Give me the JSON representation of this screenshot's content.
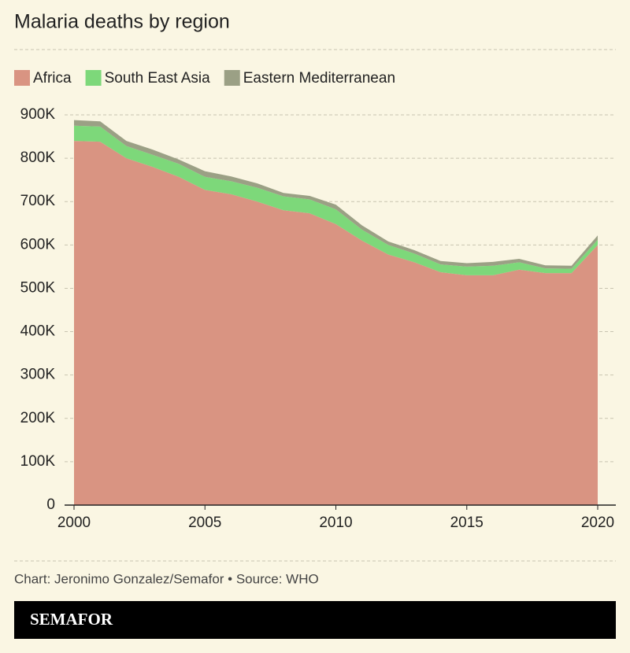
{
  "chart_data": {
    "type": "stacked_area",
    "title": "Malaria deaths by region",
    "x": [
      2000,
      2001,
      2002,
      2003,
      2004,
      2005,
      2006,
      2007,
      2008,
      2009,
      2010,
      2011,
      2012,
      2013,
      2014,
      2015,
      2016,
      2017,
      2018,
      2019,
      2020
    ],
    "series": [
      {
        "name": "Africa",
        "color": "#d99482",
        "values": [
          840000,
          838000,
          800000,
          780000,
          757000,
          727000,
          717000,
          700000,
          680000,
          673000,
          648000,
          610000,
          578000,
          560000,
          537000,
          530000,
          530000,
          543000,
          535000,
          535000,
          600000
        ]
      },
      {
        "name": "South East Asia",
        "color": "#7dd87a",
        "values": [
          35000,
          35000,
          28000,
          28000,
          30000,
          30000,
          30000,
          32000,
          32000,
          32000,
          34000,
          25000,
          22000,
          20000,
          18000,
          20000,
          22000,
          17000,
          11000,
          10000,
          12000
        ]
      },
      {
        "name": "Eastern Mediterranean",
        "color": "#9ba085",
        "values": [
          13000,
          12000,
          12000,
          12000,
          10000,
          13000,
          11000,
          10000,
          8000,
          8000,
          11000,
          10000,
          8000,
          8000,
          8000,
          8000,
          9000,
          8000,
          7000,
          7000,
          10000
        ]
      }
    ],
    "xlim": [
      2000,
      2020
    ],
    "xticks": [
      2000,
      2005,
      2010,
      2015,
      2020
    ],
    "ylim": [
      0,
      900000
    ],
    "yticks": [
      0,
      {
        "value": 100000,
        "label": "100K"
      },
      {
        "value": 200000,
        "label": "200K"
      },
      {
        "value": 300000,
        "label": "300K"
      },
      {
        "value": 400000,
        "label": "400K"
      },
      {
        "value": 500000,
        "label": "500K"
      },
      {
        "value": 600000,
        "label": "600K"
      },
      {
        "value": 700000,
        "label": "700K"
      },
      {
        "value": 800000,
        "label": "800K"
      },
      {
        "value": 900000,
        "label": "900K"
      }
    ],
    "grid": true,
    "source": "Chart: Jeronimo Gonzalez/Semafor • Source: WHO",
    "brand": "SEMAFOR"
  }
}
